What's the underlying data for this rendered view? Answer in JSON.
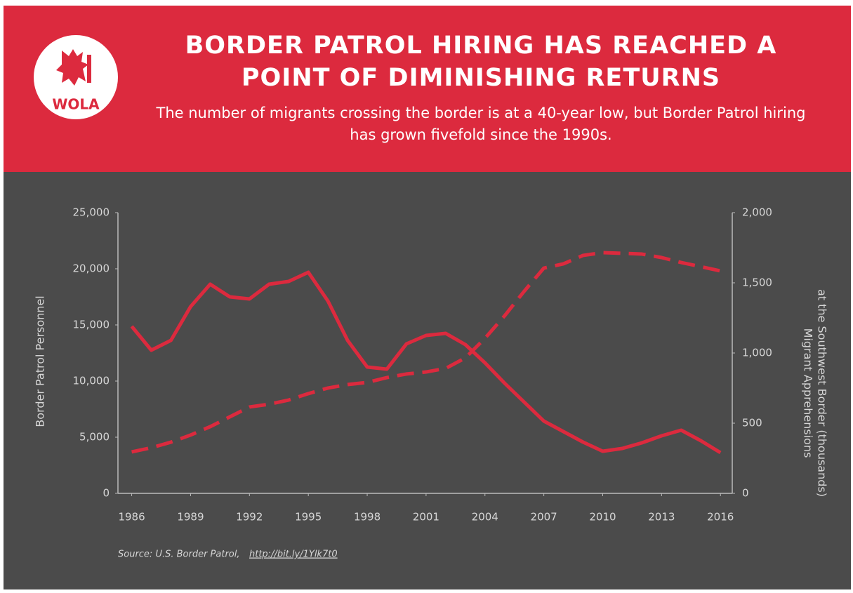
{
  "logo_text": "WOLA",
  "chart_data": {
    "type": "line",
    "title": "BORDER PATROL HIRING HAS REACHED A POINT OF DIMINISHING RETURNS",
    "subtitle": "The number of migrants crossing the border is at a 40-year low, but Border Patrol hiring has grown fivefold since the 1990s.",
    "ylabel": "Border Patrol Personnel",
    "y2label": [
      "Migrant Apprehensions",
      "at the Southwest Border (thousands)"
    ],
    "source": "Source: U.S. Border Patrol,",
    "source_url": "http://bit.ly/1Ylk7t0",
    "x": [
      1986,
      1987,
      1988,
      1989,
      1990,
      1991,
      1992,
      1993,
      1994,
      1995,
      1996,
      1997,
      1998,
      1999,
      2000,
      2001,
      2002,
      2003,
      2004,
      2005,
      2006,
      2007,
      2008,
      2009,
      2010,
      2011,
      2012,
      2013,
      2014,
      2015,
      2016
    ],
    "xlim": [
      1985.3,
      2016.6
    ],
    "xticks": [
      1986,
      1989,
      1992,
      1995,
      1998,
      2001,
      2004,
      2007,
      2010,
      2013,
      2016
    ],
    "ylim": [
      0,
      25000
    ],
    "yticks": [
      0,
      {
        "value": 5000,
        "label": "5,000"
      },
      {
        "value": 10000,
        "label": "10,000"
      },
      {
        "value": 15000,
        "label": "15,000"
      },
      {
        "value": 20000,
        "label": "20,000"
      },
      {
        "value": 25000,
        "label": "25,000"
      }
    ],
    "y2lim": [
      0,
      2000
    ],
    "y2ticks": [
      0,
      500,
      {
        "value": 1000,
        "label": "1,000"
      },
      {
        "value": 1500,
        "label": "1,500"
      },
      {
        "value": 2000,
        "label": "2,000"
      }
    ],
    "series": [
      {
        "color": "#dc2a3e",
        "style": "dashed",
        "values": [
          3690,
          4060,
          4560,
          5190,
          5940,
          6810,
          7690,
          7940,
          8310,
          8880,
          9380,
          9690,
          9880,
          10310,
          10630,
          10810,
          11130,
          12060,
          13810,
          15810,
          18000,
          20060,
          20440,
          21190,
          21440,
          21380,
          21310,
          21000,
          20560,
          20190,
          19810
        ]
      },
      {
        "color": "#dc2a3e",
        "style": "solid",
        "axis": "y2",
        "values": [
          1190,
          1020,
          1090,
          1330,
          1490,
          1400,
          1385,
          1490,
          1510,
          1575,
          1370,
          1090,
          900,
          885,
          1065,
          1125,
          1140,
          1060,
          930,
          785,
          650,
          515,
          440,
          365,
          300,
          320,
          360,
          410,
          450,
          375,
          290
        ]
      }
    ]
  }
}
